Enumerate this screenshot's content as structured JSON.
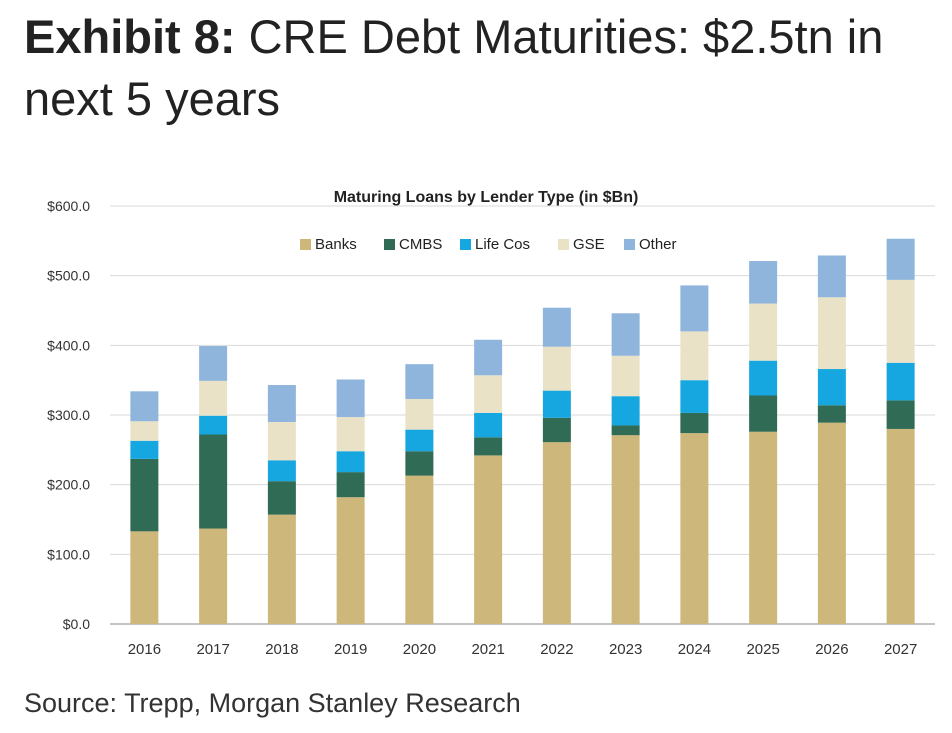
{
  "header": {
    "lead": "Exhibit 8:",
    "title": "CRE Debt Maturities: $2.5tn in next 5 years"
  },
  "footer": {
    "source": "Source: Trepp, Morgan Stanley Research"
  },
  "chart_data": {
    "type": "bar",
    "stacked": true,
    "title": "Maturing Loans by Lender Type (in $Bn)",
    "xlabel": "",
    "ylabel": "",
    "categories": [
      "2016",
      "2017",
      "2018",
      "2019",
      "2020",
      "2021",
      "2022",
      "2023",
      "2024",
      "2025",
      "2026",
      "2027"
    ],
    "series": [
      {
        "name": "Banks",
        "color": "#cdb77a",
        "values": [
          133,
          137,
          157,
          182,
          213,
          242,
          261,
          271,
          274,
          276,
          289,
          280
        ]
      },
      {
        "name": "CMBS",
        "color": "#2f6b55",
        "values": [
          104,
          135,
          48,
          36,
          35,
          26,
          35,
          14,
          29,
          52,
          25,
          41
        ]
      },
      {
        "name": "Life Cos",
        "color": "#17a7e0",
        "values": [
          26,
          27,
          30,
          30,
          31,
          35,
          39,
          42,
          47,
          50,
          52,
          54
        ]
      },
      {
        "name": "GSE",
        "color": "#e9e2c6",
        "values": [
          28,
          50,
          55,
          49,
          44,
          54,
          63,
          58,
          70,
          82,
          103,
          119
        ]
      },
      {
        "name": "Other",
        "color": "#8fb5dc",
        "values": [
          43,
          50,
          53,
          54,
          50,
          51,
          56,
          61,
          66,
          61,
          60,
          59
        ]
      }
    ],
    "yticks": [
      "$0.0",
      "$100.0",
      "$200.0",
      "$300.0",
      "$400.0",
      "$500.0",
      "$600.0"
    ],
    "ylim": [
      0,
      600
    ],
    "grid": true,
    "legend_position": "top"
  }
}
